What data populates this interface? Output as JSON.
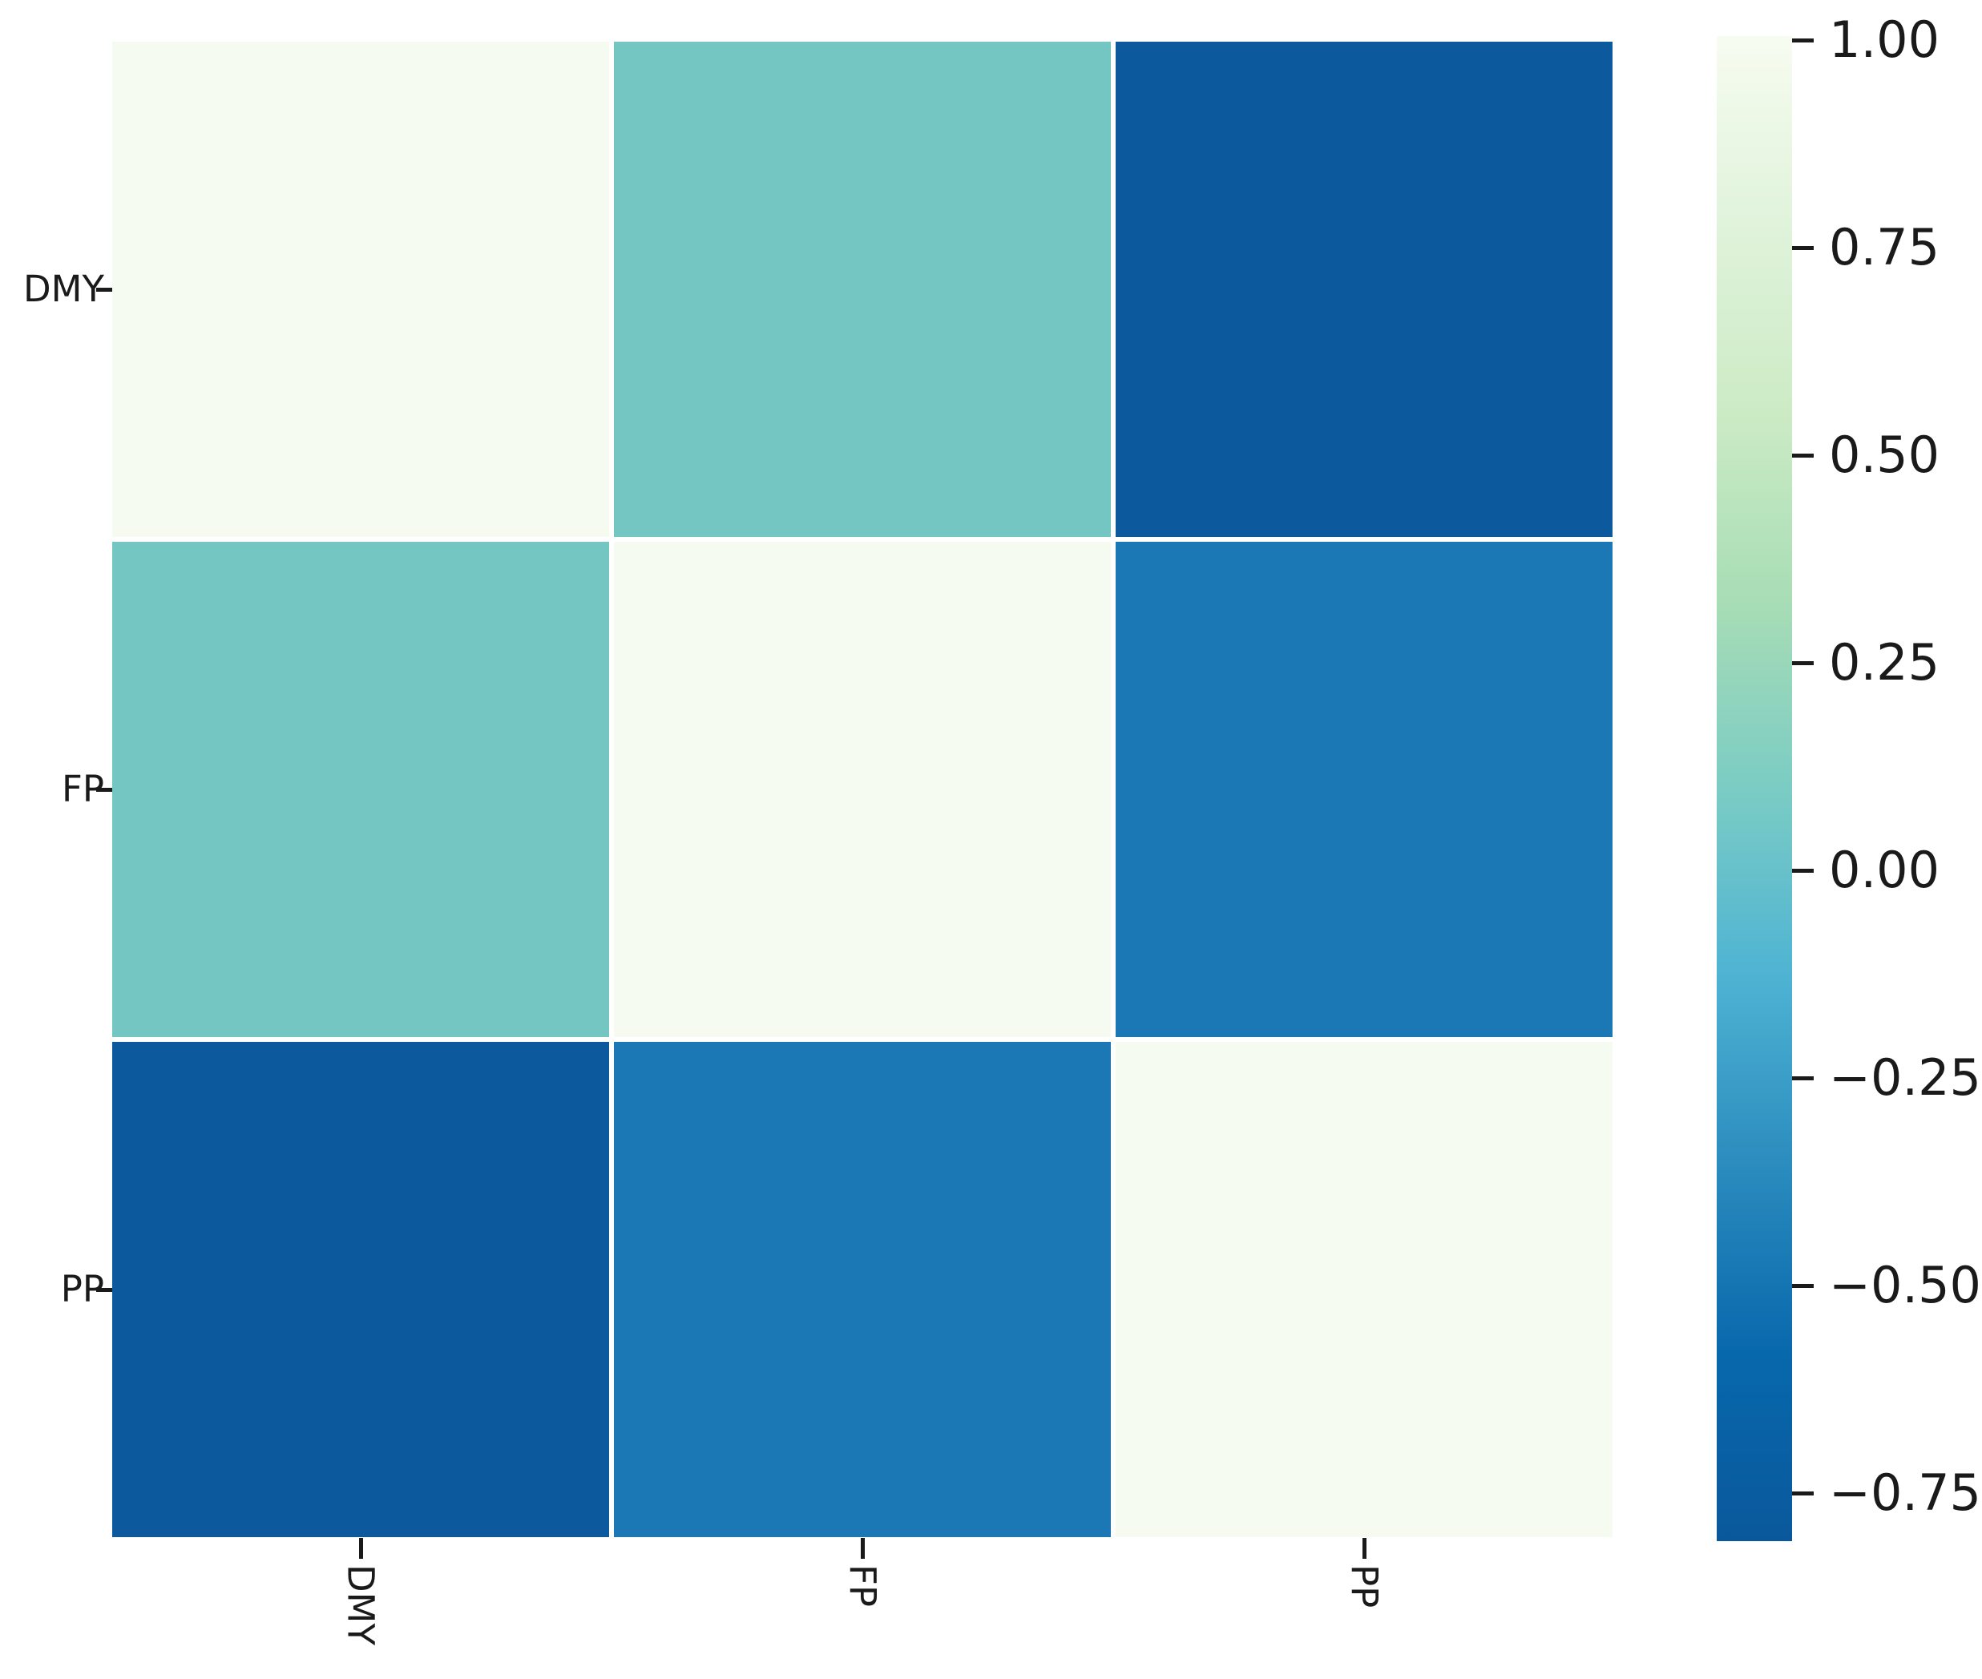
{
  "chart_data": {
    "type": "heatmap",
    "title": "",
    "variables": [
      "DMY",
      "FP",
      "PP"
    ],
    "x_tick_labels": [
      "DMY",
      "FP",
      "PP"
    ],
    "y_tick_labels": [
      "DMY",
      "FP",
      "PP"
    ],
    "matrix": [
      [
        1.0,
        0.07,
        -0.81
      ],
      [
        0.07,
        1.0,
        -0.45
      ],
      [
        -0.81,
        -0.45,
        1.0
      ]
    ],
    "cell_colors": [
      [
        "#f5fbf0",
        "#74c6c2",
        "#0c599e"
      ],
      [
        "#74c6c2",
        "#f5fbf0",
        "#1b78b5"
      ],
      [
        "#0c599e",
        "#1b78b5",
        "#f5fbf0"
      ]
    ],
    "cell_gap_color": "#ffffff",
    "colorbar": {
      "position": "right",
      "tick_labels": [
        "1.00",
        "0.75",
        "0.50",
        "0.25",
        "0.00",
        "−0.25",
        "−0.50",
        "−0.75"
      ],
      "tick_values": [
        1.0,
        0.75,
        0.5,
        0.25,
        0.0,
        -0.25,
        -0.5,
        -0.75
      ],
      "vmax": 1.0,
      "vmin": -0.81,
      "colormap": "GnBu_r",
      "gradient_top_to_bottom": [
        "#f7fcf0",
        "#e0f3db",
        "#ccebc5",
        "#a8ddb5",
        "#7bccc4",
        "#4eb3d3",
        "#2b8cbe",
        "#0868ac",
        "#0a589c"
      ]
    },
    "grid": false,
    "cell_annotations": false
  }
}
